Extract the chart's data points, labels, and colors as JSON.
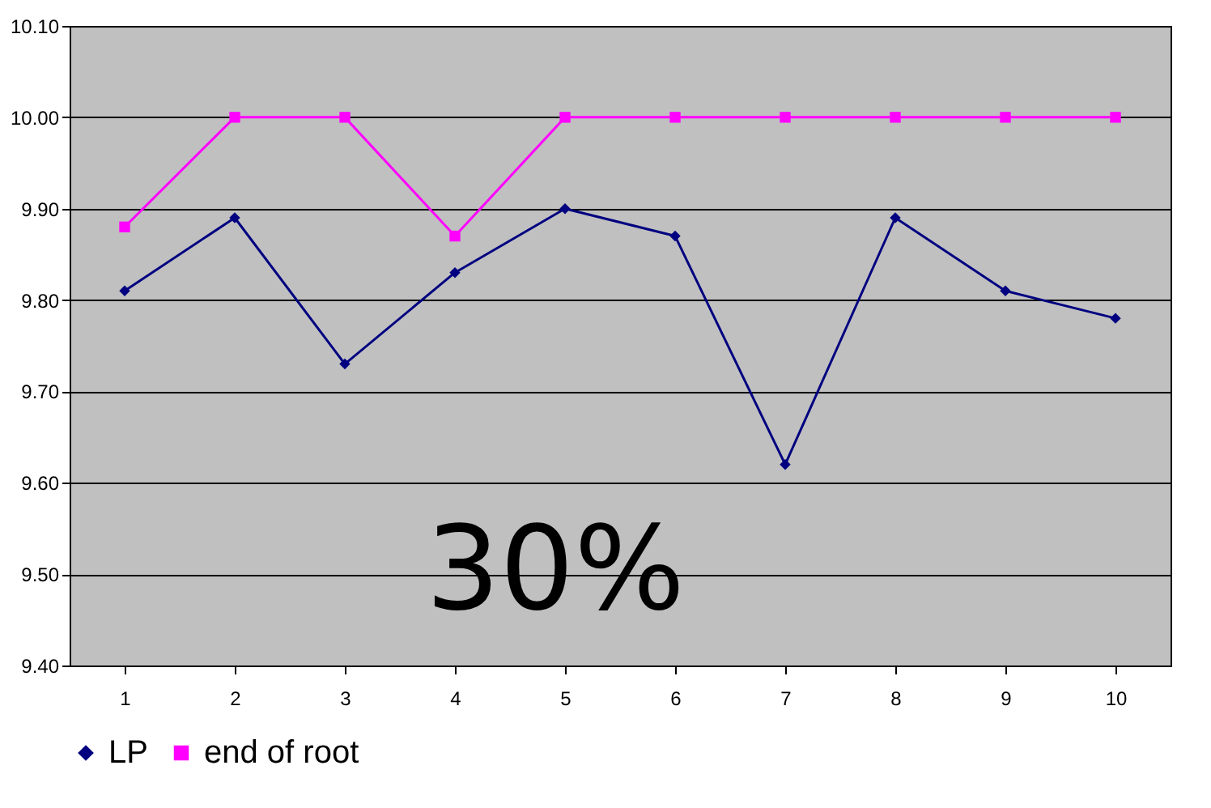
{
  "chart_data": {
    "type": "line",
    "categories": [
      "1",
      "2",
      "3",
      "4",
      "5",
      "6",
      "7",
      "8",
      "9",
      "10"
    ],
    "series": [
      {
        "name": "LP",
        "color": "#000080",
        "marker": "diamond",
        "values": [
          9.81,
          9.89,
          9.73,
          9.83,
          9.9,
          9.87,
          9.62,
          9.89,
          9.81,
          9.78
        ]
      },
      {
        "name": "end of root",
        "color": "#ff00ff",
        "marker": "square",
        "values": [
          9.88,
          10.0,
          10.0,
          9.87,
          10.0,
          10.0,
          10.0,
          10.0,
          10.0,
          10.0
        ]
      }
    ],
    "ylim": [
      9.4,
      10.1
    ],
    "yticks": [
      {
        "value": 9.4,
        "label": "9.40"
      },
      {
        "value": 9.5,
        "label": "9.50"
      },
      {
        "value": 9.6,
        "label": "9.60"
      },
      {
        "value": 9.7,
        "label": "9.70"
      },
      {
        "value": 9.8,
        "label": "9.80"
      },
      {
        "value": 9.9,
        "label": "9.90"
      },
      {
        "value": 10.0,
        "label": "10.00"
      },
      {
        "value": 10.1,
        "label": "10.10"
      }
    ],
    "grid": "y",
    "legend": "bottom",
    "line_style": "solid",
    "annotations": [
      "30%"
    ]
  }
}
